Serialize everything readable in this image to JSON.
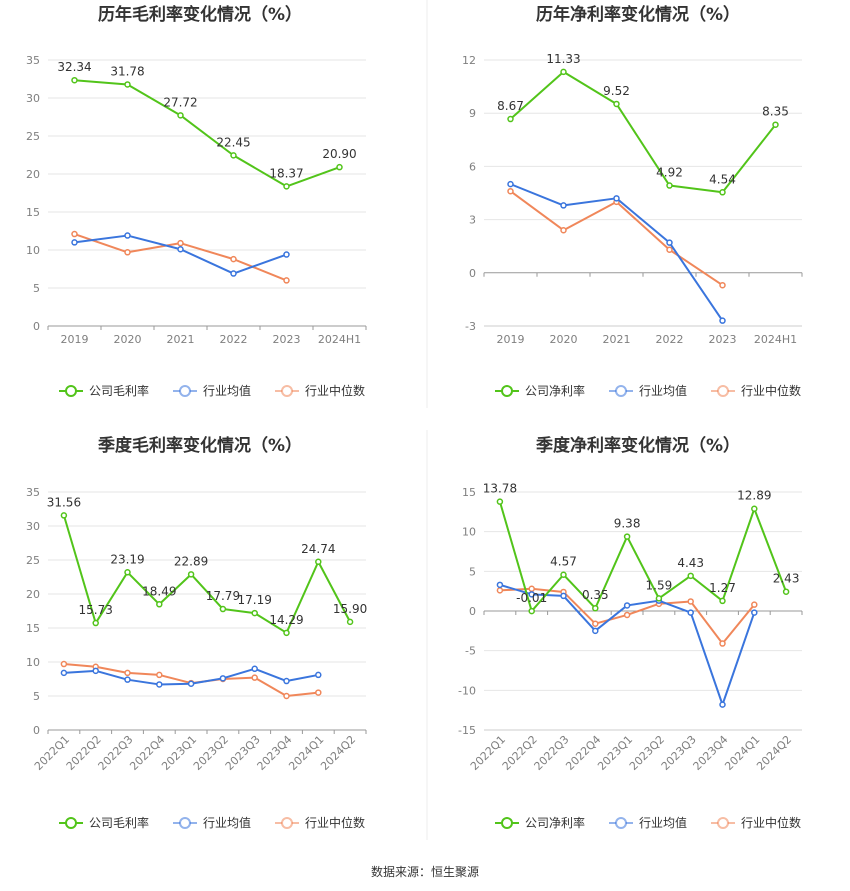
{
  "source_text": "数据来源：恒生聚源",
  "chart_data": [
    {
      "type": "line",
      "title": "历年毛利率变化情况（%）",
      "categories": [
        "2019",
        "2020",
        "2021",
        "2022",
        "2023",
        "2024H1"
      ],
      "ylim": [
        0,
        35
      ],
      "yticks": [
        0,
        5,
        10,
        15,
        20,
        25,
        30,
        35
      ],
      "tick_rotate": false,
      "series": [
        {
          "name": "公司毛利率",
          "color": "#52c41a",
          "labels": true,
          "values": [
            32.34,
            31.78,
            27.72,
            22.45,
            18.37,
            20.9
          ],
          "label_text": [
            "32.34",
            "31.78",
            "27.72",
            "22.45",
            "18.37",
            "20.90"
          ]
        },
        {
          "name": "行业均值",
          "color": "#3a75dd",
          "labels": false,
          "values": [
            11.0,
            11.9,
            10.1,
            6.9,
            9.4,
            null
          ]
        },
        {
          "name": "行业中位数",
          "color": "#f0875a",
          "labels": false,
          "values": [
            12.1,
            9.7,
            10.9,
            8.8,
            6.0,
            null
          ]
        }
      ]
    },
    {
      "type": "line",
      "title": "历年净利率变化情况（%）",
      "categories": [
        "2019",
        "2020",
        "2021",
        "2022",
        "2023",
        "2024H1"
      ],
      "ylim": [
        -3,
        12
      ],
      "yticks": [
        -3,
        0,
        3,
        6,
        9,
        12
      ],
      "tick_rotate": false,
      "series": [
        {
          "name": "公司净利率",
          "color": "#52c41a",
          "labels": true,
          "values": [
            8.67,
            11.33,
            9.52,
            4.92,
            4.54,
            8.35
          ],
          "label_text": [
            "8.67",
            "11.33",
            "9.52",
            "4.92",
            "4.54",
            "8.35"
          ]
        },
        {
          "name": "行业均值",
          "color": "#3a75dd",
          "labels": false,
          "values": [
            5.0,
            3.8,
            4.2,
            1.7,
            -2.7,
            null
          ]
        },
        {
          "name": "行业中位数",
          "color": "#f0875a",
          "labels": false,
          "values": [
            4.6,
            2.4,
            4.0,
            1.3,
            -0.7,
            null
          ]
        }
      ]
    },
    {
      "type": "line",
      "title": "季度毛利率变化情况（%）",
      "categories": [
        "2022Q1",
        "2022Q2",
        "2022Q3",
        "2022Q4",
        "2023Q1",
        "2023Q2",
        "2023Q3",
        "2023Q4",
        "2024Q1",
        "2024Q2"
      ],
      "ylim": [
        0,
        35
      ],
      "yticks": [
        0,
        5,
        10,
        15,
        20,
        25,
        30,
        35
      ],
      "tick_rotate": true,
      "series": [
        {
          "name": "公司毛利率",
          "color": "#52c41a",
          "labels": true,
          "values": [
            31.56,
            15.73,
            23.19,
            18.49,
            22.89,
            17.79,
            17.19,
            14.29,
            24.74,
            15.9
          ],
          "label_text": [
            "31.56",
            "15.73",
            "23.19",
            "18.49",
            "22.89",
            "17.79",
            "17.19",
            "14.29",
            "24.74",
            "15.90"
          ]
        },
        {
          "name": "行业均值",
          "color": "#3a75dd",
          "labels": false,
          "values": [
            8.4,
            8.7,
            7.4,
            6.7,
            6.8,
            7.6,
            9.0,
            7.2,
            8.1,
            null
          ]
        },
        {
          "name": "行业中位数",
          "color": "#f0875a",
          "labels": false,
          "values": [
            9.7,
            9.3,
            8.4,
            8.1,
            6.9,
            7.5,
            7.7,
            5.0,
            5.5,
            null
          ]
        }
      ]
    },
    {
      "type": "line",
      "title": "季度净利率变化情况（%）",
      "categories": [
        "2022Q1",
        "2022Q2",
        "2022Q3",
        "2022Q4",
        "2023Q1",
        "2023Q2",
        "2023Q3",
        "2023Q4",
        "2024Q1",
        "2024Q2"
      ],
      "ylim": [
        -15,
        15
      ],
      "yticks": [
        -15,
        -10,
        -5,
        0,
        5,
        10,
        15
      ],
      "tick_rotate": true,
      "series": [
        {
          "name": "公司净利率",
          "color": "#52c41a",
          "labels": true,
          "values": [
            13.78,
            -0.01,
            4.57,
            0.35,
            9.38,
            1.59,
            4.43,
            1.27,
            12.89,
            2.43
          ],
          "label_text": [
            "13.78",
            "-0.01",
            "4.57",
            "0.35",
            "9.38",
            "1.59",
            "4.43",
            "1.27",
            "12.89",
            "2.43"
          ]
        },
        {
          "name": "行业均值",
          "color": "#3a75dd",
          "labels": false,
          "values": [
            3.3,
            2.1,
            1.9,
            -2.5,
            0.7,
            1.3,
            -0.2,
            -11.8,
            -0.2,
            null
          ]
        },
        {
          "name": "行业中位数",
          "color": "#f0875a",
          "labels": false,
          "values": [
            2.6,
            2.8,
            2.4,
            -1.6,
            -0.5,
            0.9,
            1.2,
            -4.1,
            0.8,
            null
          ]
        }
      ]
    }
  ]
}
